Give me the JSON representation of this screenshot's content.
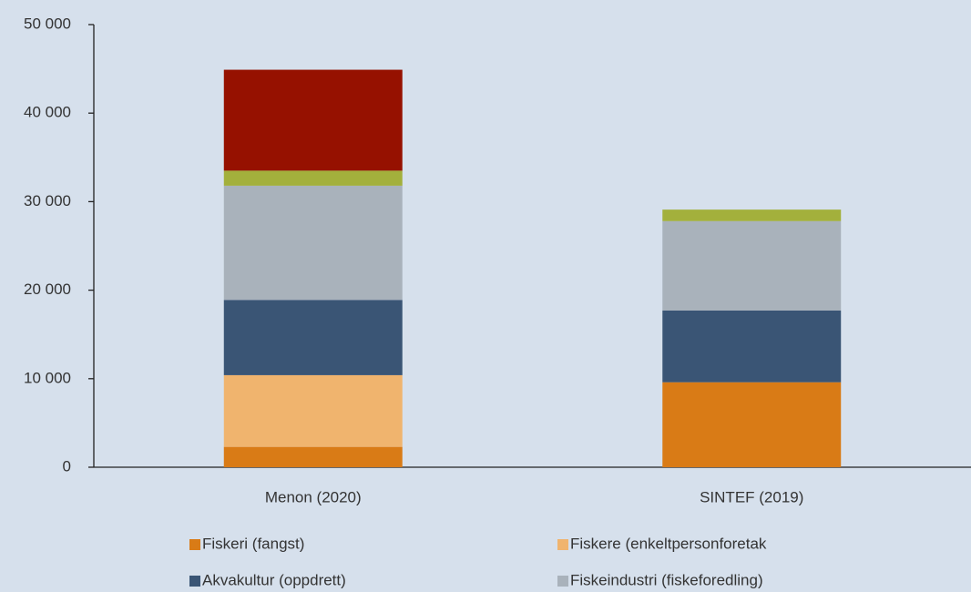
{
  "chart_data": {
    "type": "stacked-bar",
    "categories": [
      "Menon (2020)",
      "SINTEF (2019)"
    ],
    "series": [
      {
        "name": "Fiskeri (fangst)",
        "color": "#d97b16",
        "values": [
          2300,
          9600
        ]
      },
      {
        "name": "Fiskere (enkeltpersonforetak",
        "color": "#f0b46e",
        "values": [
          8100,
          0
        ]
      },
      {
        "name": "Akvakultur (oppdrett)",
        "color": "#3a5575",
        "values": [
          8500,
          8100
        ]
      },
      {
        "name": "Fiskeindustri (fiskeforedling)",
        "color": "#a9b2bb",
        "values": [
          12900,
          10100
        ]
      },
      {
        "color": "#a3b03c",
        "values": [
          1700,
          1300
        ]
      },
      {
        "color": "#961100",
        "values": [
          11400,
          0
        ]
      }
    ],
    "ylim": [
      0,
      50000
    ],
    "yticks": [
      0,
      {
        "value": 10000,
        "label": "10 000"
      },
      {
        "value": 20000,
        "label": "20 000"
      },
      {
        "value": 30000,
        "label": "30 000"
      },
      {
        "value": 40000,
        "label": "40 000"
      },
      {
        "value": 50000,
        "label": "50 000"
      }
    ],
    "grid": false
  }
}
